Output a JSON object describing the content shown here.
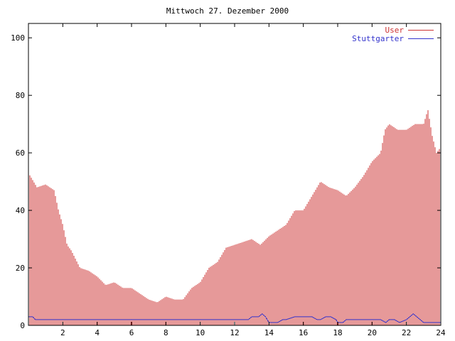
{
  "chart_data": {
    "type": "bar",
    "title": "Mittwoch 27. Dezember 2000",
    "xlim": [
      0,
      24
    ],
    "ylim": [
      0,
      105
    ],
    "x_ticks": [
      2,
      4,
      6,
      8,
      10,
      12,
      14,
      16,
      18,
      20,
      22,
      24
    ],
    "y_ticks": [
      0,
      20,
      40,
      60,
      80,
      100
    ],
    "legend_position": "top-right",
    "series": [
      {
        "name": "User",
        "color": "#cc3333",
        "style": "impulse",
        "x": [
          0,
          0.5,
          1,
          1.5,
          1.75,
          2,
          2.25,
          2.5,
          3,
          3.5,
          4,
          4.5,
          5,
          5.5,
          6,
          6.5,
          7,
          7.5,
          8,
          8.5,
          9,
          9.5,
          10,
          10.5,
          11,
          11.5,
          12,
          12.5,
          13,
          13.5,
          14,
          14.5,
          15,
          15.5,
          16,
          16.5,
          17,
          17.5,
          18,
          18.5,
          19,
          19.5,
          20,
          20.5,
          20.75,
          21,
          21.5,
          22,
          22.5,
          23,
          23.25,
          23.5,
          23.75,
          24
        ],
        "values": [
          53,
          48,
          49,
          47,
          40,
          35,
          28,
          26,
          20,
          19,
          17,
          14,
          15,
          13,
          13,
          11,
          9,
          8,
          10,
          9,
          9,
          13,
          15,
          20,
          22,
          27,
          28,
          29,
          30,
          28,
          31,
          33,
          35,
          40,
          40,
          45,
          50,
          48,
          47,
          45,
          48,
          52,
          57,
          60,
          68,
          70,
          68,
          68,
          70,
          70,
          75,
          66,
          60,
          62
        ]
      },
      {
        "name": "Stuttgarter",
        "color": "#3333cc",
        "style": "line",
        "x": [
          0,
          0.25,
          0.4,
          1,
          2,
          3,
          4,
          5,
          6,
          7,
          8,
          9,
          10,
          11,
          12,
          12.8,
          13,
          13.4,
          13.6,
          13.8,
          14,
          14.5,
          14.8,
          15,
          15.5,
          16,
          16.5,
          16.8,
          17,
          17.3,
          17.6,
          17.9,
          18,
          18.3,
          18.5,
          19,
          19.5,
          20,
          20.5,
          20.8,
          21,
          21.3,
          21.6,
          22,
          22.2,
          22.4,
          22.8,
          23,
          23.5,
          24
        ],
        "values": [
          3,
          3,
          2,
          2,
          2,
          2,
          2,
          2,
          2,
          2,
          2,
          2,
          2,
          2,
          2,
          2,
          3,
          3,
          4,
          3,
          1,
          1,
          2,
          2,
          3,
          3,
          3,
          2,
          2,
          3,
          3,
          2,
          1,
          1,
          2,
          2,
          2,
          2,
          2,
          1,
          2,
          2,
          1,
          2,
          3,
          4,
          2,
          1,
          1,
          1
        ]
      }
    ]
  }
}
